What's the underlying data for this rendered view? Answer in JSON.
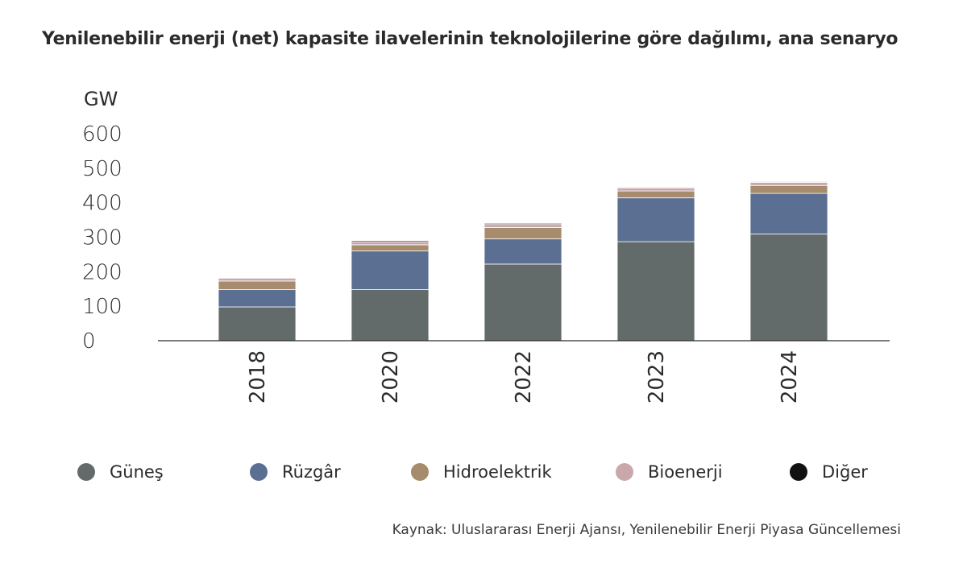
{
  "chart_data": {
    "type": "bar",
    "stacked": true,
    "title": "Yenilenebilir enerji (net) kapasite ilavelerinin teknolojilerine göre dağılımı, ana senaryo",
    "ylabel": "GW",
    "xlabel": "",
    "ylim": [
      0,
      600
    ],
    "yticks": [
      "0",
      "100",
      "200",
      "300",
      "400",
      "500",
      "600"
    ],
    "categories": [
      "2018",
      "2020",
      "2022",
      "2023",
      "2024"
    ],
    "grid": false,
    "legend_position": "bottom",
    "series": [
      {
        "name": "Güneş",
        "color": "#636b6a",
        "values": [
          98,
          148,
          222,
          287,
          309
        ]
      },
      {
        "name": "Rüzgâr",
        "color": "#5b6f92",
        "values": [
          50,
          112,
          73,
          127,
          118
        ]
      },
      {
        "name": "Hidroelektrik",
        "color": "#a68c6c",
        "values": [
          25,
          18,
          33,
          20,
          23
        ]
      },
      {
        "name": "Bioenerji",
        "color": "#c9a8ac",
        "values": [
          8,
          9,
          9,
          9,
          9
        ]
      },
      {
        "name": "Diğer",
        "color": "#111111",
        "values": [
          2,
          3,
          3,
          2,
          2
        ]
      }
    ],
    "source": "Kaynak: Uluslararası Enerji Ajansı, Yenilenebilir Enerji Piyasa Güncellemesi"
  }
}
